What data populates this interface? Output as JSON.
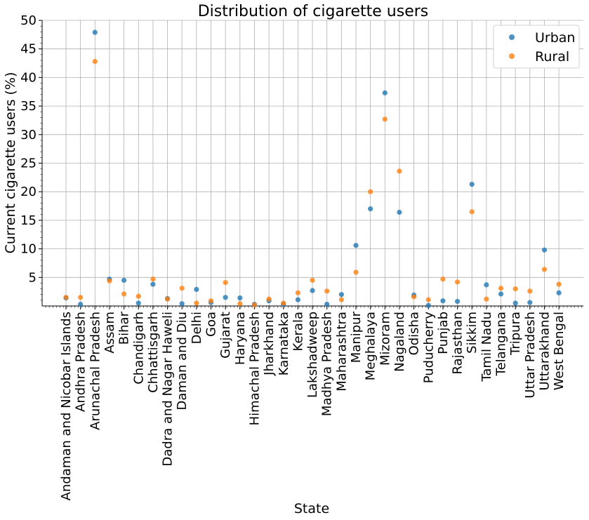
{
  "chart_data": {
    "type": "scatter",
    "title": "Distribution of cigarette users",
    "xlabel": "State",
    "ylabel": "Current cigarette users (%)",
    "ylim": [
      0,
      50
    ],
    "yticks": [
      5,
      10,
      15,
      20,
      25,
      30,
      35,
      40,
      45,
      50
    ],
    "grid": true,
    "legend_position": "top-right",
    "categories": [
      "Andaman and Nicobar Islands",
      "Andhra Pradesh",
      "Arunachal Pradesh",
      "Assam",
      "Bihar",
      "Chandigarh",
      "Chhattisgarh",
      "Dadra and Nagar Haweli",
      "Daman and Diu",
      "Delhi",
      "Goa",
      "Gujarat",
      "Haryana",
      "Himachal Pradesh",
      "Jharkhand",
      "Karnataka",
      "Kerala",
      "Lakshadweep",
      "Madhya Pradesh",
      "Maharashtra",
      "Manipur",
      "Meghalaya",
      "Mizoram",
      "Nagaland",
      "Odisha",
      "Puducherry",
      "Punjab",
      "Rajasthan",
      "Sikkim",
      "Tamil Nadu",
      "Telangana",
      "Tripura",
      "Uttar Pradesh",
      "Uttarakhand",
      "West Bengal"
    ],
    "series": [
      {
        "name": "Urban",
        "color": "#1f77b4",
        "values": [
          1.4,
          0.3,
          47.9,
          4.7,
          4.5,
          0.5,
          3.8,
          1.3,
          0.4,
          2.9,
          0.6,
          1.5,
          1.4,
          0.3,
          0.9,
          0.3,
          1.1,
          2.7,
          0.3,
          2.0,
          10.6,
          17.0,
          37.3,
          16.4,
          1.9,
          0.1,
          0.9,
          0.8,
          21.3,
          3.7,
          2.1,
          0.5,
          0.6,
          9.8,
          2.3
        ]
      },
      {
        "name": "Rural",
        "color": "#ff7f0e",
        "values": [
          1.5,
          1.5,
          42.8,
          4.4,
          2.1,
          1.7,
          4.7,
          1.2,
          3.1,
          0.5,
          0.9,
          4.1,
          0.4,
          0.2,
          1.2,
          0.5,
          2.3,
          4.5,
          2.6,
          1.1,
          5.9,
          20.0,
          32.7,
          23.6,
          1.6,
          1.1,
          4.7,
          4.2,
          16.5,
          1.2,
          3.1,
          3.0,
          2.6,
          6.4,
          3.8
        ]
      }
    ]
  }
}
